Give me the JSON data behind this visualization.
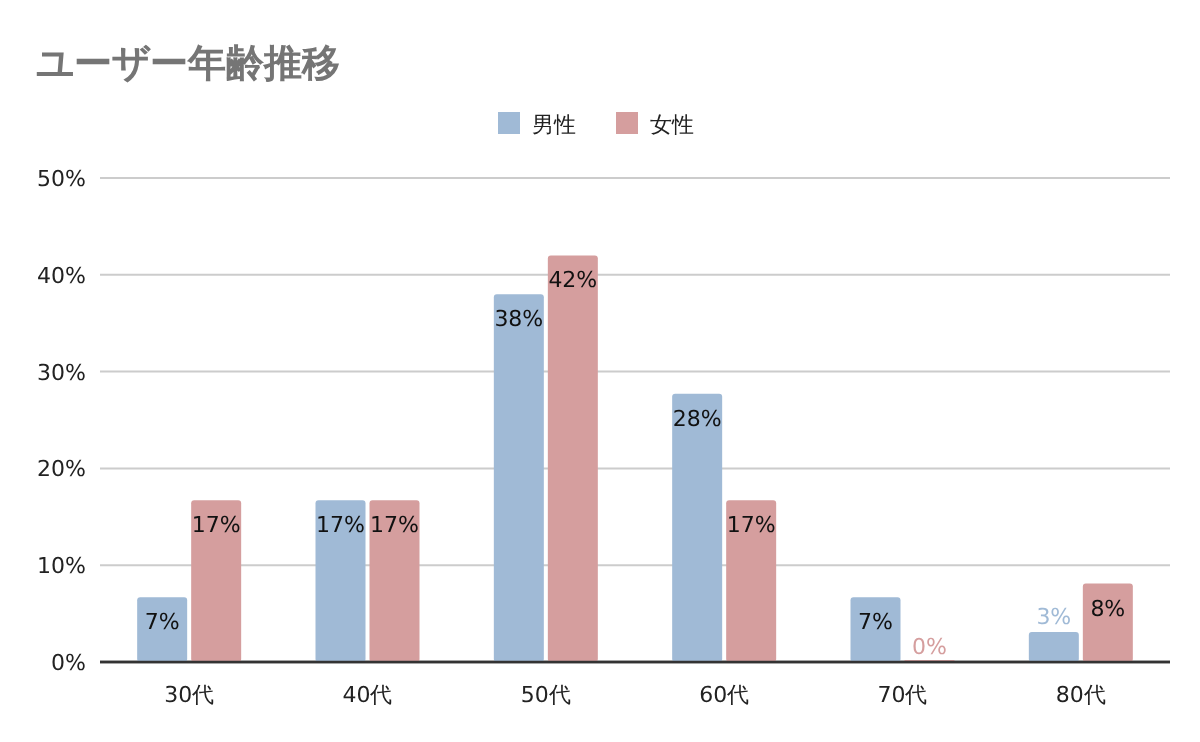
{
  "chart_data": {
    "type": "bar",
    "title": "ユーザー年齢推移",
    "categories": [
      "30代",
      "40代",
      "50代",
      "60代",
      "70代",
      "80代"
    ],
    "series": [
      {
        "name": "男性",
        "color": "#a0bad6",
        "values": [
          6.7,
          16.7,
          38,
          27.7,
          6.7,
          3.1
        ],
        "value_labels": [
          "7%",
          "17%",
          "38%",
          "28%",
          "7%",
          "3%"
        ]
      },
      {
        "name": "女性",
        "color": "#d59e9e",
        "values": [
          16.7,
          16.7,
          42,
          16.7,
          0,
          8.1
        ],
        "value_labels": [
          "17%",
          "17%",
          "42%",
          "17%",
          "0%",
          "8%"
        ]
      }
    ],
    "ylim": [
      0,
      50
    ],
    "yticks": [
      {
        "value": 0,
        "label": "0%"
      },
      {
        "value": 10,
        "label": "10%"
      },
      {
        "value": 20,
        "label": "20%"
      },
      {
        "value": 30,
        "label": "30%"
      },
      {
        "value": 40,
        "label": "40%"
      },
      {
        "value": 50,
        "label": "50%"
      }
    ],
    "grid": "y",
    "legend": "top"
  }
}
